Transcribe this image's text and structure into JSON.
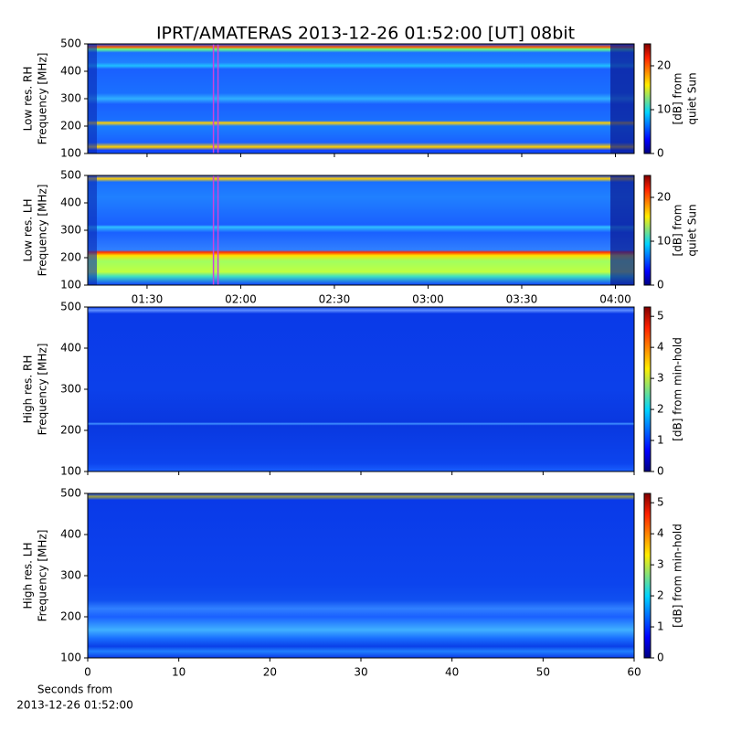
{
  "title": "IPRT/AMATERAS 2013-12-26 01:52:00 [UT]   08bit",
  "chart_data": [
    {
      "type": "heatmap",
      "ylabel": [
        "Low res. RH",
        "Frequency [MHz]"
      ],
      "ylim": [
        100,
        500
      ],
      "yticks": [
        100,
        200,
        300,
        400,
        500
      ],
      "highlight_x": "01:52",
      "highlight_color": "#cc44dd",
      "clim": [
        0,
        25
      ],
      "cticks": [
        0,
        10,
        20
      ],
      "clabel": [
        "[dB] from",
        "quiet Sun"
      ],
      "colormap": "jet"
    },
    {
      "type": "heatmap",
      "ylabel": [
        "Low res. LH",
        "Frequency [MHz]"
      ],
      "ylim": [
        100,
        500
      ],
      "yticks": [
        100,
        200,
        300,
        400,
        500
      ],
      "xlim": [
        "01:11",
        "04:06"
      ],
      "xticks": [
        "01:30",
        "02:00",
        "02:30",
        "03:00",
        "03:30",
        "04:00"
      ],
      "highlight_x": "01:52",
      "highlight_color": "#cc44dd",
      "clim": [
        0,
        25
      ],
      "cticks": [
        0,
        10,
        20
      ],
      "clabel": [
        "[dB] from",
        "quiet Sun"
      ],
      "colormap": "jet"
    },
    {
      "type": "heatmap",
      "ylabel": [
        "High res. RH",
        "Frequency [MHz]"
      ],
      "ylim": [
        100,
        500
      ],
      "yticks": [
        100,
        200,
        300,
        400,
        500
      ],
      "clim": [
        0,
        5.3
      ],
      "cticks": [
        0,
        1,
        2,
        3,
        4,
        5
      ],
      "clabel": [
        "[dB] from min-hold"
      ],
      "colormap": "jet"
    },
    {
      "type": "heatmap",
      "ylabel": [
        "High res. LH",
        "Frequency [MHz]"
      ],
      "ylim": [
        100,
        500
      ],
      "yticks": [
        100,
        200,
        300,
        400,
        500
      ],
      "xlim": [
        0,
        60
      ],
      "xticks": [
        0,
        10,
        20,
        30,
        40,
        50,
        60
      ],
      "xlabel": [
        "Seconds from",
        "2013-12-26 01:52:00"
      ],
      "clim": [
        0,
        5.3
      ],
      "cticks": [
        0,
        1,
        2,
        3,
        4,
        5
      ],
      "clabel": [
        "[dB] from min-hold"
      ],
      "colormap": "jet"
    }
  ]
}
